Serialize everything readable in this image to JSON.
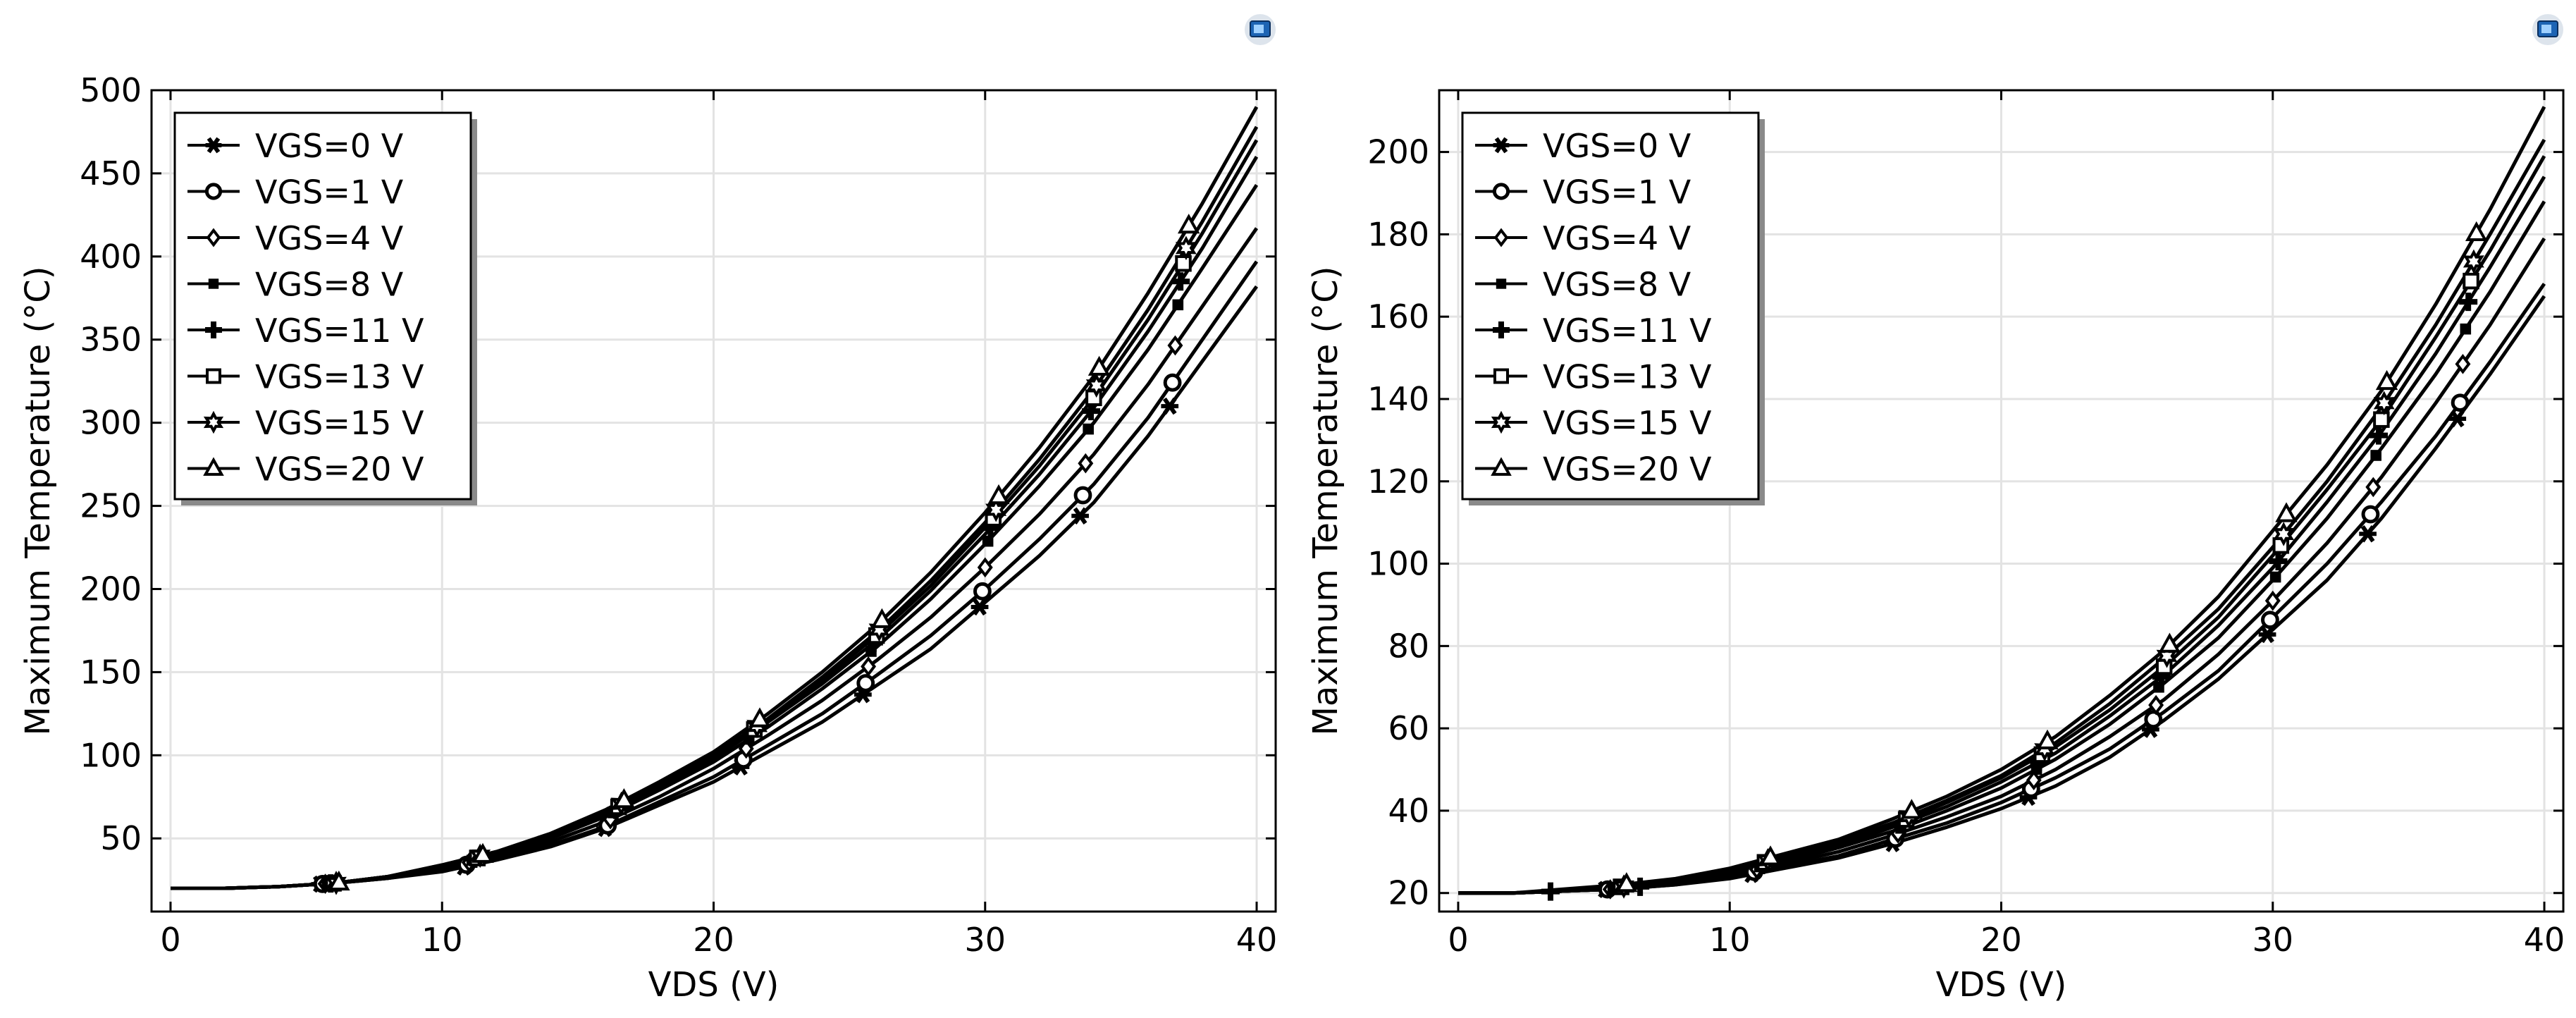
{
  "chart_data": [
    {
      "type": "line",
      "xlabel": "VDS (V)",
      "ylabel": "Maximum Temperature (°C)",
      "xlim": [
        -0.7,
        40.7
      ],
      "ylim": [
        6,
        500
      ],
      "xticks": [
        0,
        10,
        20,
        30,
        40
      ],
      "yticks": [
        50,
        100,
        150,
        200,
        250,
        300,
        350,
        400,
        450,
        500
      ],
      "grid": true,
      "legend_position": "top-left",
      "x": [
        0,
        2,
        4,
        6,
        8,
        10,
        12,
        14,
        16,
        18,
        20,
        22,
        24,
        26,
        28,
        30,
        32,
        34,
        36,
        38,
        40
      ],
      "series": [
        {
          "name": "VGS=0 V",
          "marker": "asterisk",
          "values": [
            20,
            20,
            21,
            23,
            26,
            30,
            37,
            45,
            56,
            70,
            84,
            102,
            120,
            142,
            164,
            192,
            220,
            252,
            292,
            337,
            382
          ],
          "marker_x": [
            5.5,
            10.8,
            16,
            21,
            25.5,
            29.8,
            33.5,
            36.8
          ]
        },
        {
          "name": "VGS=1 V",
          "marker": "circle",
          "values": [
            20,
            20,
            21,
            23,
            26,
            31,
            38,
            46,
            57,
            72,
            87,
            106,
            125,
            148,
            172,
            200,
            230,
            263,
            303,
            350,
            397
          ],
          "marker_x": [
            5.6,
            10.9,
            16.1,
            21.1,
            25.6,
            29.9,
            33.6,
            36.9
          ]
        },
        {
          "name": "VGS=4 V",
          "marker": "diamond",
          "values": [
            20,
            20,
            21,
            23,
            26,
            32,
            39,
            48,
            60,
            75,
            92,
            112,
            133,
            157,
            183,
            213,
            245,
            281,
            323,
            370,
            417
          ],
          "marker_x": [
            5.7,
            11,
            16.2,
            21.2,
            25.7,
            30,
            33.7,
            37
          ]
        },
        {
          "name": "VGS=8 V",
          "marker": "square-filled",
          "values": [
            20,
            20,
            21,
            23,
            27,
            33,
            40,
            50,
            63,
            79,
            96,
            117,
            140,
            165,
            194,
            227,
            262,
            300,
            344,
            393,
            443
          ],
          "marker_x": [
            5.8,
            11.1,
            16.3,
            21.3,
            25.8,
            30.1,
            33.8,
            37.1
          ]
        },
        {
          "name": "VGS=11 V",
          "marker": "plus",
          "values": [
            20,
            20,
            21,
            23,
            27,
            33,
            41,
            51,
            64,
            80,
            98,
            120,
            143,
            169,
            199,
            233,
            269,
            309,
            355,
            405,
            460
          ],
          "marker_x": [
            5.9,
            11.2,
            16.4,
            21.4,
            25.9,
            30.2,
            33.9,
            37.2
          ]
        },
        {
          "name": "VGS=13 V",
          "marker": "square",
          "values": [
            20,
            20,
            21,
            23,
            27,
            33,
            41,
            51,
            65,
            81,
            99,
            121,
            145,
            172,
            202,
            237,
            274,
            315,
            362,
            414,
            470
          ],
          "marker_x": [
            6,
            11.3,
            16.5,
            21.5,
            26,
            30.3,
            34,
            37.3
          ]
        },
        {
          "name": "VGS=15 V",
          "marker": "star",
          "values": [
            20,
            20,
            21,
            23,
            27,
            34,
            42,
            52,
            66,
            82,
            100,
            122,
            147,
            174,
            205,
            240,
            278,
            320,
            368,
            421,
            478
          ],
          "marker_x": [
            6.1,
            11.4,
            16.6,
            21.6,
            26.1,
            30.4,
            34.1,
            37.4
          ]
        },
        {
          "name": "VGS=20 V",
          "marker": "triangle",
          "values": [
            20,
            20,
            21,
            23,
            27,
            34,
            42,
            53,
            67,
            84,
            102,
            125,
            150,
            178,
            210,
            246,
            285,
            328,
            378,
            432,
            490
          ],
          "marker_x": [
            6.2,
            11.5,
            16.7,
            21.7,
            26.2,
            30.5,
            34.2,
            37.5
          ]
        }
      ]
    },
    {
      "type": "line",
      "xlabel": "VDS (V)",
      "ylabel": "Maximum Temperature (°C)",
      "xlim": [
        -0.7,
        40.7
      ],
      "ylim": [
        15.5,
        215
      ],
      "xticks": [
        0,
        10,
        20,
        30,
        40
      ],
      "yticks": [
        20,
        40,
        60,
        80,
        100,
        120,
        140,
        160,
        180,
        200
      ],
      "grid": true,
      "legend_position": "top-left",
      "x": [
        0,
        2,
        4,
        6,
        8,
        10,
        12,
        14,
        16,
        18,
        20,
        22,
        24,
        26,
        28,
        30,
        32,
        34,
        36,
        38,
        40
      ],
      "series": [
        {
          "name": "VGS=0 V",
          "marker": "asterisk",
          "values": [
            20,
            20,
            20.5,
            21,
            22,
            23.5,
            26,
            28.5,
            32,
            36,
            40.5,
            46,
            53,
            62,
            72,
            84,
            96,
            111,
            128,
            146,
            165
          ],
          "marker_x": [
            5.4,
            10.8,
            16,
            21,
            25.5,
            29.8,
            33.5,
            36.8
          ]
        },
        {
          "name": "VGS=1 V",
          "marker": "circle",
          "values": [
            20,
            20,
            20.5,
            21,
            22,
            24,
            26.5,
            29,
            33,
            37,
            42,
            48,
            55,
            64,
            74,
            87,
            100,
            115,
            131,
            149,
            168
          ],
          "marker_x": [
            5.5,
            10.9,
            16.1,
            21.1,
            25.6,
            29.9,
            33.6,
            36.9
          ]
        },
        {
          "name": "VGS=4 V",
          "marker": "diamond",
          "values": [
            20,
            20,
            20.5,
            21,
            22.5,
            24.5,
            27,
            30,
            34,
            38.5,
            43.5,
            50,
            58,
            67,
            78,
            91,
            105,
            121,
            139,
            158,
            179
          ],
          "marker_x": [
            5.6,
            11,
            16.2,
            21.2,
            25.7,
            30,
            33.7,
            37
          ]
        },
        {
          "name": "VGS=8 V",
          "marker": "square-filled",
          "values": [
            20,
            20,
            20.5,
            21,
            22.5,
            25,
            27.5,
            31,
            35,
            40,
            45.5,
            52.5,
            61,
            71,
            82,
            96,
            111,
            128,
            146,
            166,
            188
          ],
          "marker_x": [
            5.7,
            11.1,
            16.3,
            21.3,
            25.8,
            30.1,
            33.8,
            37.1
          ]
        },
        {
          "name": "VGS=11 V",
          "marker": "plus",
          "values": [
            20,
            20,
            20.5,
            21,
            22.5,
            25,
            28,
            31.5,
            36,
            41,
            47,
            54,
            63,
            73,
            85,
            99,
            115,
            132,
            151,
            172,
            194
          ],
          "marker_x": [
            3.4,
            6.7,
            11.2,
            16.4,
            21.4,
            25.9,
            30.2,
            33.9,
            37.2
          ]
        },
        {
          "name": "VGS=13 V",
          "marker": "square",
          "values": [
            20,
            20,
            20.5,
            21.5,
            23,
            25.5,
            28.5,
            32,
            36.5,
            42,
            48,
            55.5,
            64.5,
            75,
            87,
            102,
            118,
            135,
            155,
            176,
            199
          ],
          "marker_x": [
            6,
            11.3,
            16.5,
            21.5,
            26,
            30.3,
            34,
            37.3
          ]
        },
        {
          "name": "VGS=15 V",
          "marker": "star",
          "values": [
            20,
            20,
            20.5,
            21.5,
            23,
            25.5,
            29,
            32.5,
            37,
            42.5,
            48.5,
            56.5,
            66,
            77,
            89,
            104,
            120,
            138,
            158,
            180,
            203
          ],
          "marker_x": [
            6.1,
            11.4,
            16.6,
            21.6,
            26.1,
            30.4,
            34.1,
            37.4
          ]
        },
        {
          "name": "VGS=20 V",
          "marker": "triangle",
          "values": [
            20,
            20,
            21,
            22,
            23.5,
            26,
            29.5,
            33,
            38,
            43.5,
            50,
            58,
            68,
            79,
            92,
            108,
            124,
            142,
            163,
            186,
            211
          ],
          "marker_x": [
            6.2,
            11.5,
            16.7,
            21.7,
            26.2,
            30.5,
            34.2,
            37.5
          ]
        }
      ]
    }
  ],
  "toolbar_icons": [
    "window-icon",
    "window-icon"
  ]
}
